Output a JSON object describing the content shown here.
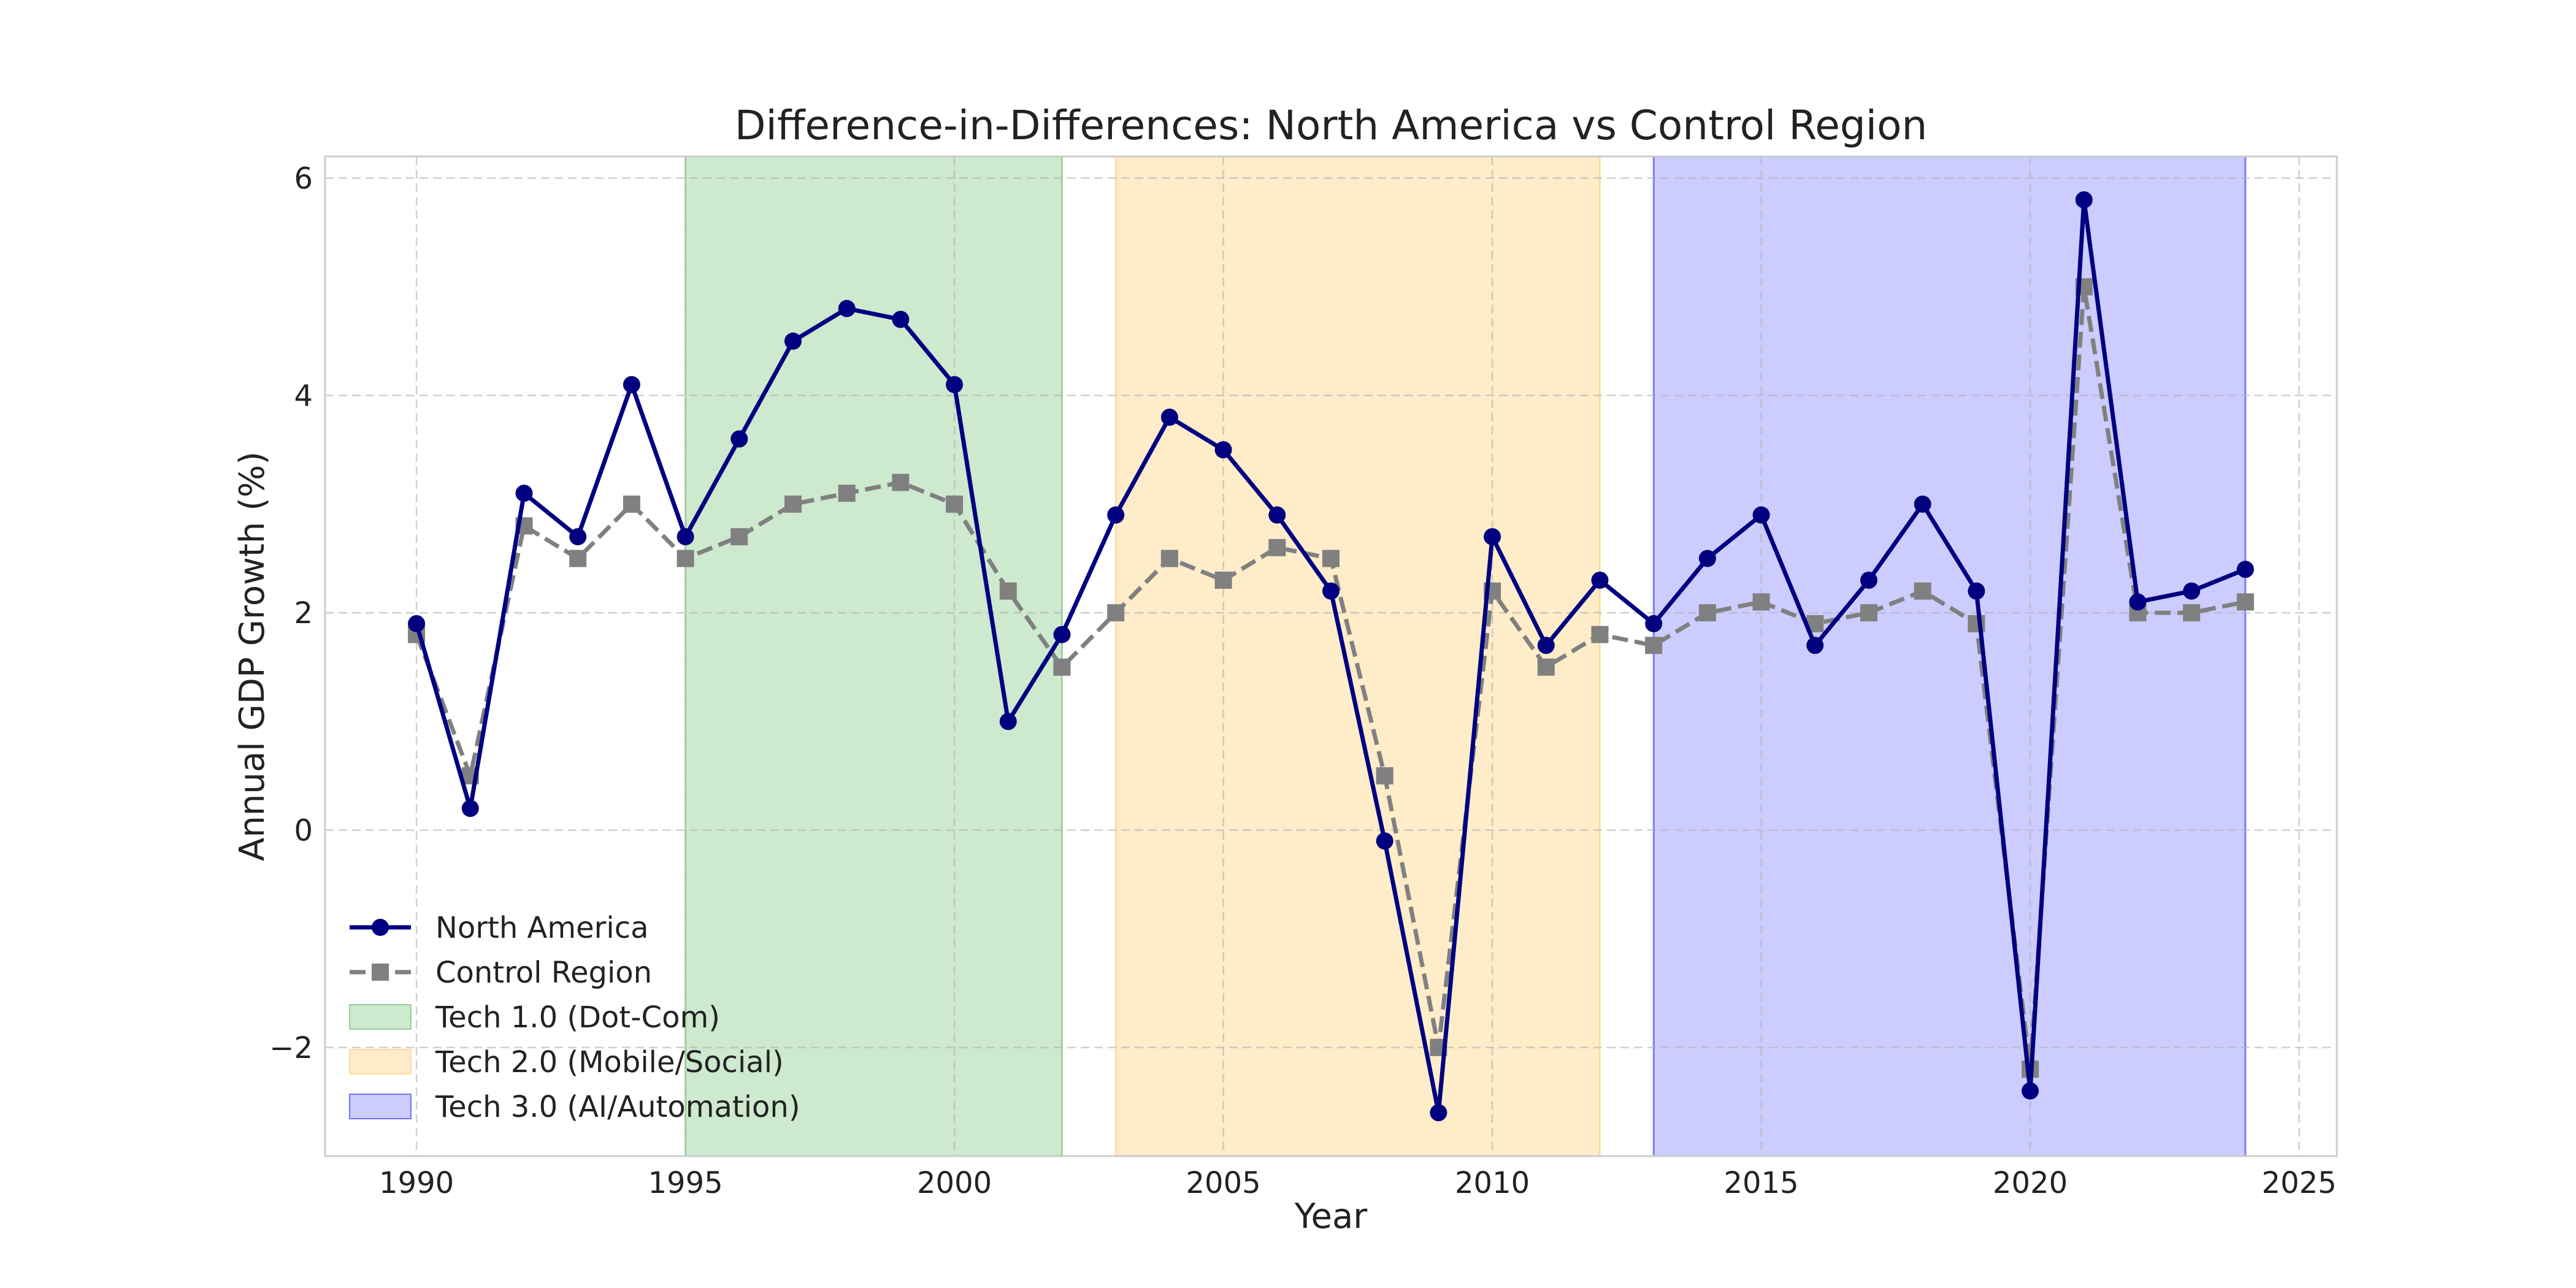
{
  "chart_data": {
    "type": "line",
    "title": "Difference-in-Differences: North America vs Control Region",
    "xlabel": "Year",
    "ylabel": "Annual GDP Growth (%)",
    "xlim": [
      1988.3,
      2025.7
    ],
    "ylim": [
      -3.0,
      6.2
    ],
    "x_ticks": [
      1990,
      1995,
      2000,
      2005,
      2010,
      2015,
      2020,
      2025
    ],
    "y_ticks": [
      -2,
      0,
      2,
      4,
      6
    ],
    "grid": true,
    "legend_position": "lower-left",
    "x": [
      1990,
      1991,
      1992,
      1993,
      1994,
      1995,
      1996,
      1997,
      1998,
      1999,
      2000,
      2001,
      2002,
      2003,
      2004,
      2005,
      2006,
      2007,
      2008,
      2009,
      2010,
      2011,
      2012,
      2013,
      2014,
      2015,
      2016,
      2017,
      2018,
      2019,
      2020,
      2021,
      2022,
      2023,
      2024
    ],
    "series": [
      {
        "name": "North America",
        "color": "#000080",
        "style": "solid",
        "marker": "circle",
        "values": [
          1.9,
          0.2,
          3.1,
          2.7,
          4.1,
          2.7,
          3.6,
          4.5,
          4.8,
          4.7,
          4.1,
          1.0,
          1.8,
          2.9,
          3.8,
          3.5,
          2.9,
          2.2,
          -0.1,
          -2.6,
          2.7,
          1.7,
          2.3,
          1.9,
          2.5,
          2.9,
          1.7,
          2.3,
          3.0,
          2.2,
          -2.4,
          5.8,
          2.1,
          2.2,
          2.4
        ]
      },
      {
        "name": "Control Region",
        "color": "#808080",
        "style": "dashed",
        "marker": "square",
        "values": [
          1.8,
          0.5,
          2.8,
          2.5,
          3.0,
          2.5,
          2.7,
          3.0,
          3.1,
          3.2,
          3.0,
          2.2,
          1.5,
          2.0,
          2.5,
          2.3,
          2.6,
          2.5,
          0.5,
          -2.0,
          2.2,
          1.5,
          1.8,
          1.7,
          2.0,
          2.1,
          1.9,
          2.0,
          2.2,
          1.9,
          -2.2,
          5.0,
          2.0,
          2.0,
          2.1
        ]
      }
    ],
    "shaded_regions": [
      {
        "label": "Tech 1.0 (Dot-Com)",
        "start": 1995,
        "end": 2002,
        "color": "#4caf50",
        "opacity": 0.28
      },
      {
        "label": "Tech 2.0 (Mobile/Social)",
        "start": 2003,
        "end": 2012,
        "color": "#ffc04d",
        "opacity": 0.3
      },
      {
        "label": "Tech 3.0 (AI/Automation)",
        "start": 2013,
        "end": 2024,
        "color": "#0000ff",
        "opacity": 0.2
      }
    ]
  }
}
